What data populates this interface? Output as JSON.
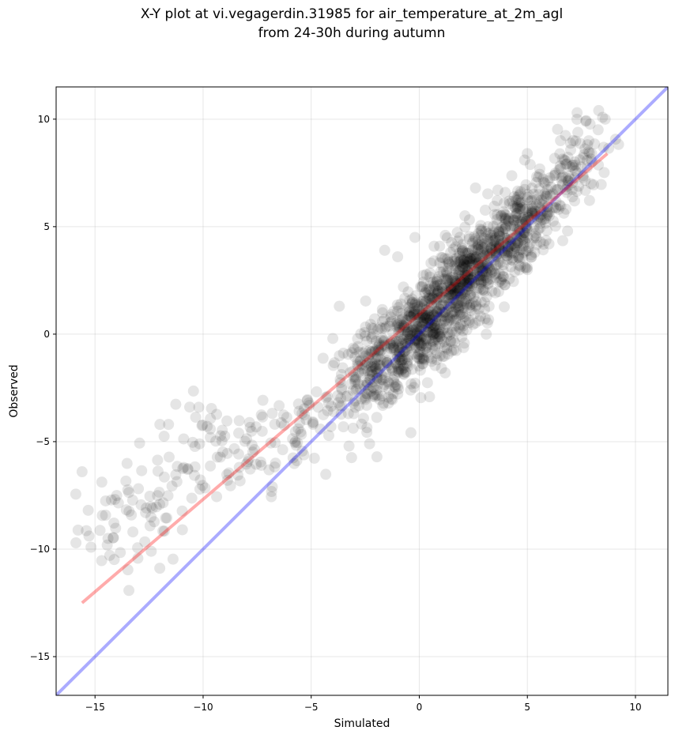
{
  "chart_data": {
    "type": "scatter",
    "title": "X-Y plot at vi.vegagerdin.31985 for air_temperature_at_2m_agl",
    "subtitle": "from 24-30h during autumn",
    "xlabel": "Simulated",
    "ylabel": "Observed",
    "xlim": [
      -16.8,
      11.5
    ],
    "ylim": [
      -16.8,
      11.5
    ],
    "xticks": [
      -15,
      -10,
      -5,
      0,
      5,
      10
    ],
    "yticks": [
      -15,
      -10,
      -5,
      0,
      5,
      10
    ],
    "xtick_labels": [
      "−15",
      "−10",
      "−5",
      "0",
      "5",
      "10"
    ],
    "ytick_labels": [
      "−15",
      "−10",
      "−5",
      "0",
      "5",
      "10"
    ],
    "grid": true,
    "legend": "none",
    "colors": {
      "points": "#000000",
      "fit_line": "#ff0000",
      "identity_line": "#0000ff"
    },
    "fit_line": {
      "x": [
        -15.6,
        8.7
      ],
      "y": [
        -12.5,
        8.4
      ]
    },
    "identity_line": {
      "x": [
        -16.8,
        11.5
      ],
      "y": [
        -16.8,
        11.5
      ]
    },
    "point_clusters": [
      {
        "cx": -13.0,
        "cy": -8.5,
        "sx": 1.4,
        "sy": 1.3,
        "r": 0.2,
        "n": 70
      },
      {
        "cx": -9.5,
        "cy": -5.5,
        "sx": 1.5,
        "sy": 1.3,
        "r": 0.3,
        "n": 70
      },
      {
        "cx": -5.5,
        "cy": -4.3,
        "sx": 1.3,
        "sy": 1.3,
        "r": 0.3,
        "n": 60
      },
      {
        "cx": -2.0,
        "cy": -1.6,
        "sx": 1.1,
        "sy": 1.2,
        "r": 0.5,
        "n": 220
      },
      {
        "cx": 0.3,
        "cy": 0.4,
        "sx": 1.2,
        "sy": 1.4,
        "r": 0.6,
        "n": 460
      },
      {
        "cx": 2.6,
        "cy": 3.0,
        "sx": 1.2,
        "sy": 1.3,
        "r": 0.6,
        "n": 420
      },
      {
        "cx": 4.8,
        "cy": 5.2,
        "sx": 1.1,
        "sy": 1.2,
        "r": 0.6,
        "n": 260
      },
      {
        "cx": 7.2,
        "cy": 8.0,
        "sx": 0.9,
        "sy": 1.1,
        "r": 0.5,
        "n": 70
      }
    ],
    "extra_points": [
      {
        "x": -15.6,
        "y": -6.4
      },
      {
        "x": -14.4,
        "y": -9.5
      },
      {
        "x": -12.4,
        "y": -10.1
      },
      {
        "x": -12.0,
        "y": -4.2
      },
      {
        "x": -11.6,
        "y": -4.2
      },
      {
        "x": -10.2,
        "y": -3.4
      },
      {
        "x": -3.6,
        "y": -2.5
      },
      {
        "x": -1.6,
        "y": 3.9
      },
      {
        "x": -0.2,
        "y": 4.5
      },
      {
        "x": 3.1,
        "y": 0.0
      },
      {
        "x": 8.6,
        "y": 10.0
      },
      {
        "x": 8.3,
        "y": 10.4
      },
      {
        "x": 7.3,
        "y": 10.3
      },
      {
        "x": 2.6,
        "y": 6.8
      },
      {
        "x": -3.7,
        "y": 1.3
      },
      {
        "x": -4.0,
        "y": -0.2
      },
      {
        "x": -0.4,
        "y": -2.6
      },
      {
        "x": 2.2,
        "y": 0.2
      },
      {
        "x": -2.3,
        "y": -5.1
      },
      {
        "x": -6.8,
        "y": -7.1
      },
      {
        "x": 6.0,
        "y": 4.2
      },
      {
        "x": 5.0,
        "y": 3.0
      },
      {
        "x": 1.2,
        "y": -1.8
      },
      {
        "x": -1.0,
        "y": 3.6
      }
    ]
  }
}
